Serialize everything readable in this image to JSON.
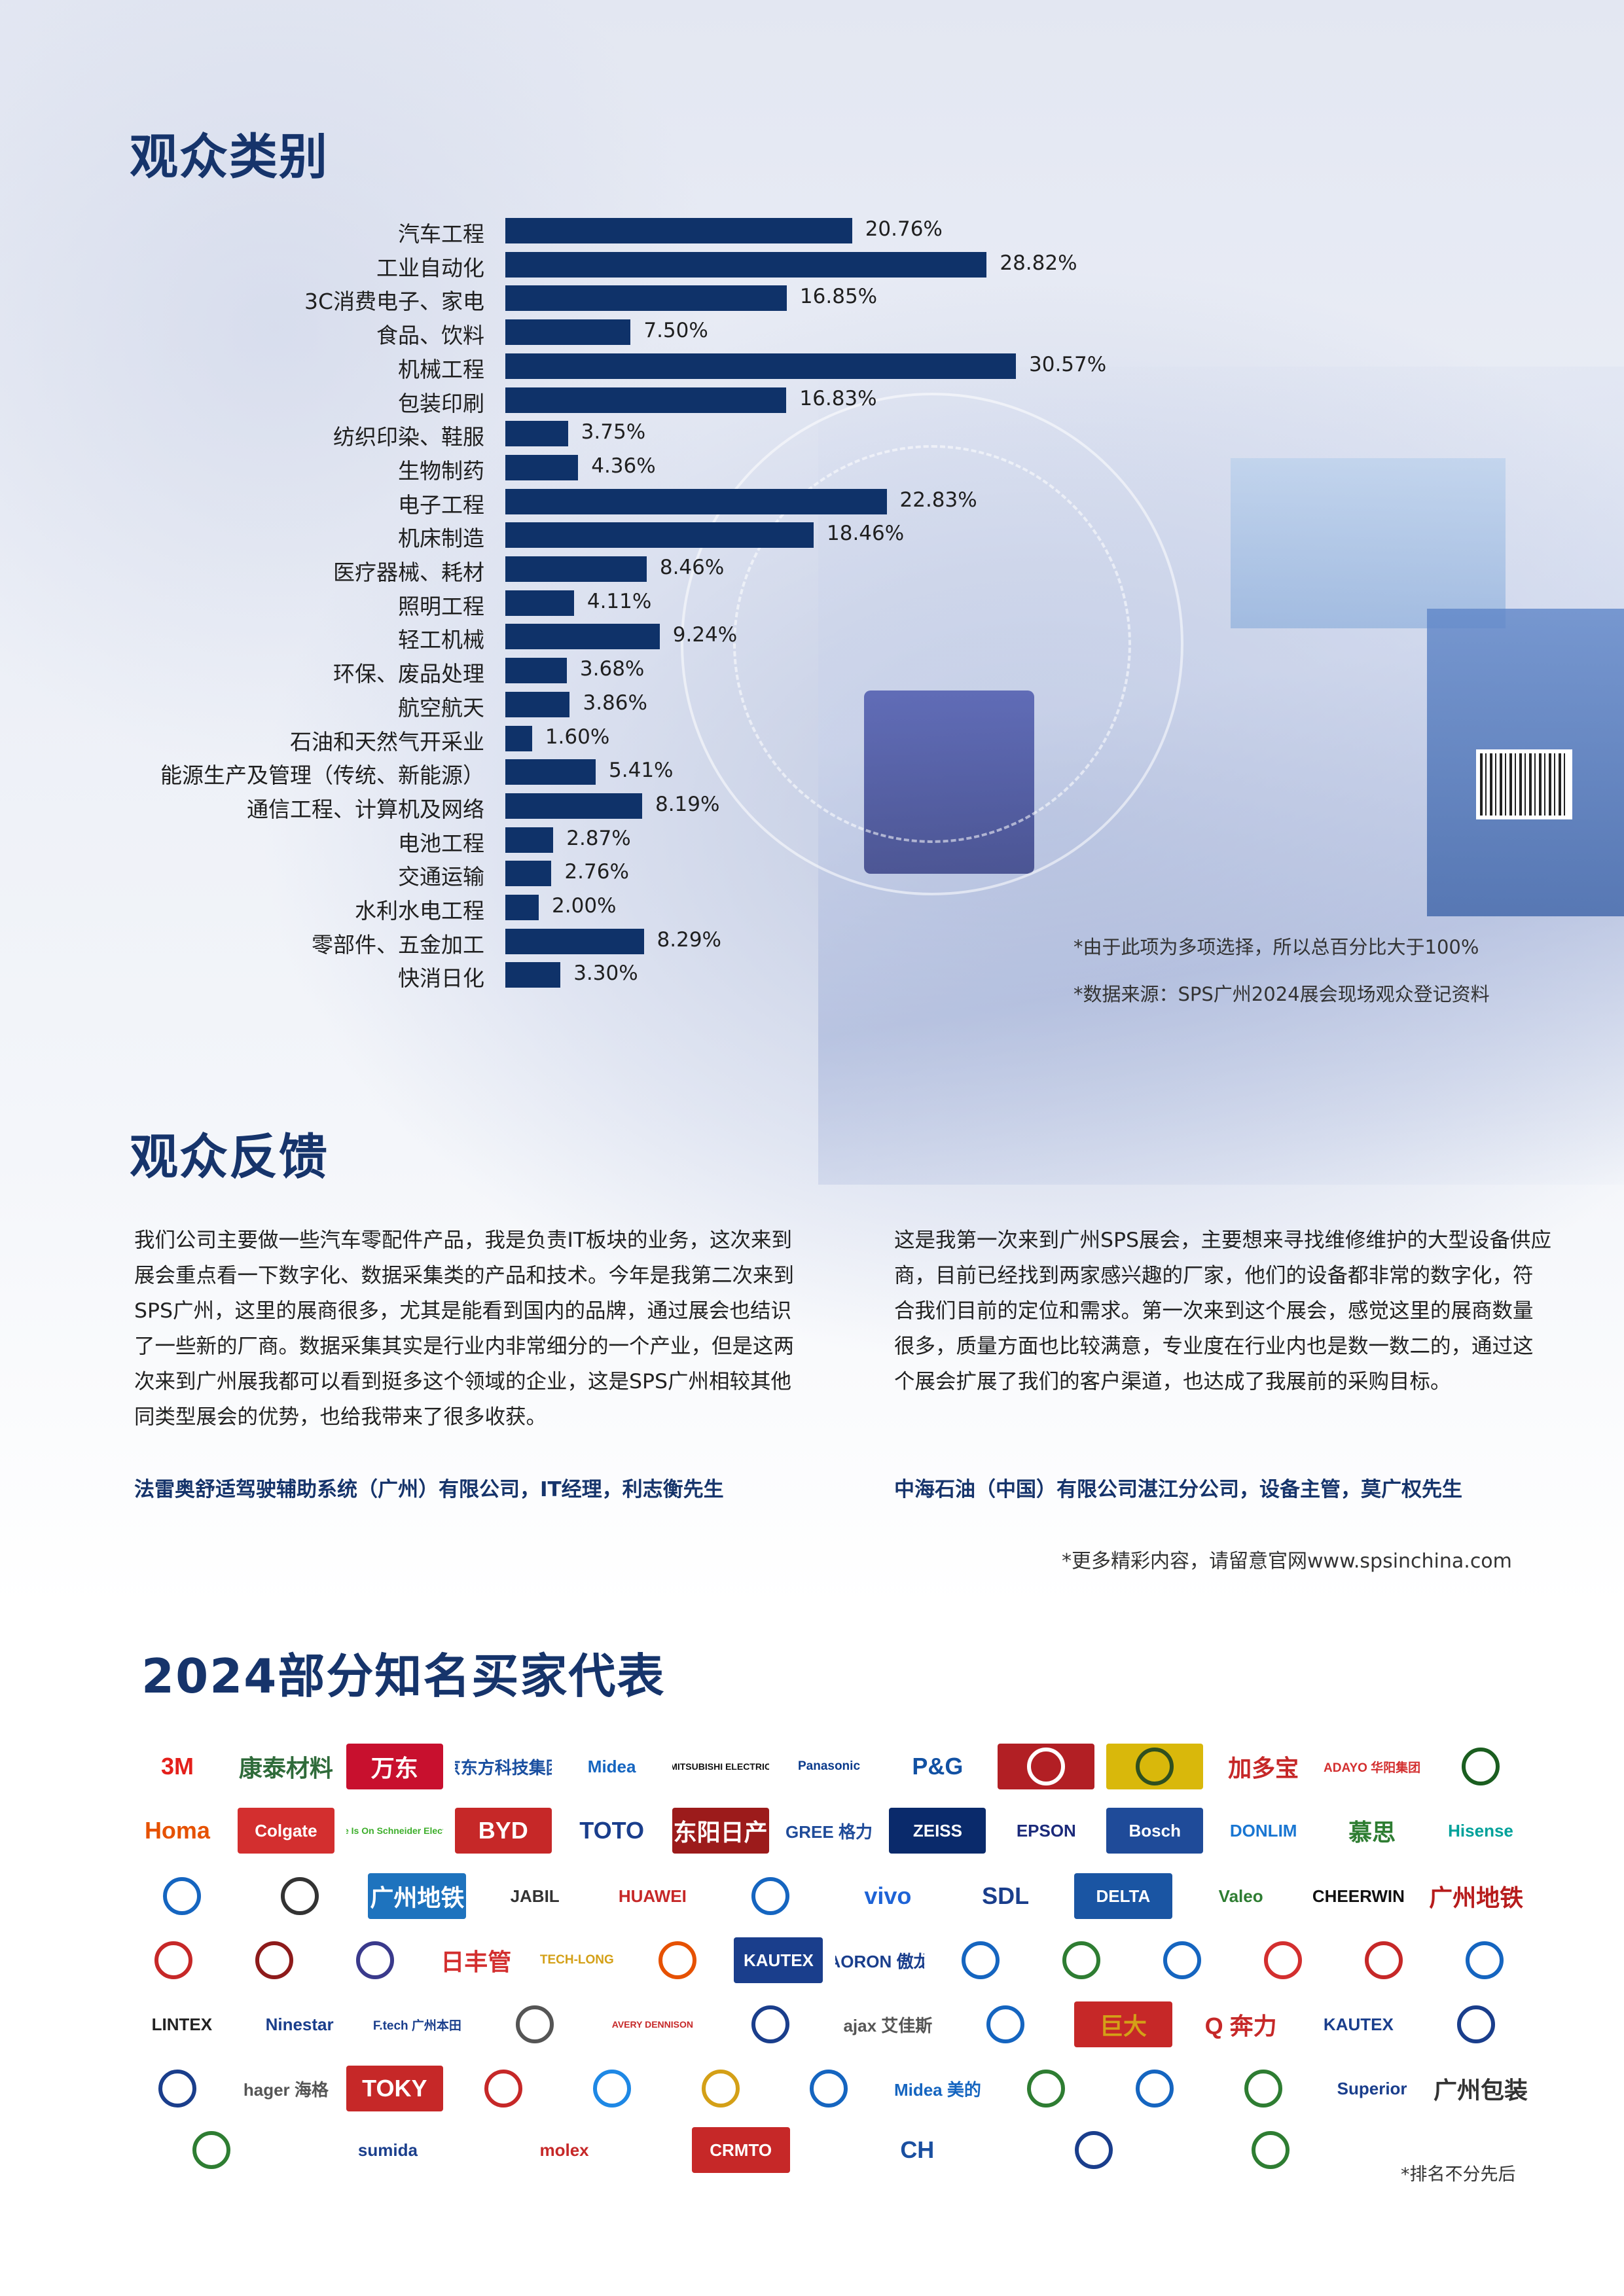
{
  "audience_categories": {
    "title": "观众类别",
    "chart_data": {
      "type": "bar",
      "orientation": "horizontal",
      "title": "观众类别",
      "categories": [
        "汽车工程",
        "工业自动化",
        "3C消费电子、家电",
        "食品、饮料",
        "机械工程",
        "包装印刷",
        "纺织印染、鞋服",
        "生物制药",
        "电子工程",
        "机床制造",
        "医疗器械、耗材",
        "照明工程",
        "轻工机械",
        "环保、废品处理",
        "航空航天",
        "石油和天然气开采业",
        "能源生产及管理（传统、新能源）",
        "通信工程、计算机及网络",
        "电池工程",
        "交通运输",
        "水利水电工程",
        "零部件、五金加工",
        "快消日化"
      ],
      "values": [
        20.76,
        28.82,
        16.85,
        7.5,
        30.57,
        16.83,
        3.75,
        4.36,
        22.83,
        18.46,
        8.46,
        4.11,
        9.24,
        3.68,
        3.86,
        1.6,
        5.41,
        8.19,
        2.87,
        2.76,
        2.0,
        8.29,
        3.3
      ],
      "value_labels": [
        "20.76%",
        "28.82%",
        "16.85%",
        "7.50%",
        "30.57%",
        "16.83%",
        "3.75%",
        "4.36%",
        "22.83%",
        "18.46%",
        "8.46%",
        "4.11%",
        "9.24%",
        "3.68%",
        "3.86%",
        "1.60%",
        "5.41%",
        "8.19%",
        "2.87%",
        "2.76%",
        "2.00%",
        "8.29%",
        "3.30%"
      ],
      "unit": "%",
      "xlim": [
        0,
        30.57
      ],
      "grid": false,
      "bar_color": "#0f3269"
    },
    "notes": [
      "*由于此项为多项选择，所以总百分比大于100%",
      "*数据来源：SPS广州2024展会现场观众登记资料"
    ]
  },
  "feedback": {
    "title": "观众反馈",
    "quotes": [
      {
        "text": "我们公司主要做一些汽车零配件产品，我是负责IT板块的业务，这次来到展会重点看一下数字化、数据采集类的产品和技术。今年是我第二次来到SPS广州，这里的展商很多，尤其是能看到国内的品牌，通过展会也结识了一些新的厂商。数据采集其实是行业内非常细分的一个产业，但是这两次来到广州展我都可以看到挺多这个领域的企业，这是SPS广州相较其他同类型展会的优势，也给我带来了很多收获。",
        "author": "法雷奥舒适驾驶辅助系统（广州）有限公司，IT经理，利志衡先生"
      },
      {
        "text": "这是我第一次来到广州SPS展会，主要想来寻找维修维护的大型设备供应商，目前已经找到两家感兴趣的厂家，他们的设备都非常的数字化，符合我们目前的定位和需求。第一次来到这个展会，感觉这里的展商数量很多，质量方面也比较满意，专业度在行业内也是数一数二的，通过这个展会扩展了我们的客户渠道，也达成了我展前的采购目标。",
        "author": "中海石油（中国）有限公司湛江分公司，设备主管，莫广权先生"
      }
    ],
    "more": "*更多精彩内容，请留意官网www.spsinchina.com"
  },
  "buyers": {
    "title": "2024部分知名买家代表",
    "footnote": "*排名不分先后",
    "logos": [
      {
        "text": "3M",
        "color": "#e4201b",
        "bg": "#ffffff"
      },
      {
        "text": "康泰材料",
        "color": "#2f6b3a",
        "bg": "#ffffff"
      },
      {
        "text": "万东",
        "color": "#ffffff",
        "bg": "#c8102e"
      },
      {
        "text": "京东方科技集团",
        "color": "#1a4fa0",
        "bg": "#ffffff"
      },
      {
        "text": "Midea",
        "color": "#1565c0",
        "bg": ""
      },
      {
        "text": "MITSUBISHI ELECTRIC",
        "color": "#111111",
        "bg": ""
      },
      {
        "text": "Panasonic",
        "color": "#0b3b8c",
        "bg": ""
      },
      {
        "text": "P&G",
        "color": "#1251a3",
        "bg": "#ffffff"
      },
      {
        "text": "",
        "color": "#ffffff",
        "bg": "#b21f24"
      },
      {
        "text": "",
        "color": "#2f4f1f",
        "bg": "#d9b80b"
      },
      {
        "text": "加多宝",
        "color": "#c62828",
        "bg": ""
      },
      {
        "text": "ADAYO 华阳集团",
        "color": "#d32f2f",
        "bg": ""
      },
      {
        "text": "",
        "color": "#1b5e20",
        "bg": ""
      },
      {
        "text": "Homa",
        "color": "#e65100",
        "bg": ""
      },
      {
        "text": "Colgate",
        "color": "#ffffff",
        "bg": "#d32f2f"
      },
      {
        "text": "Life Is On Schneider Electric",
        "color": "#3dae2b",
        "bg": "#ffffff"
      },
      {
        "text": "BYD",
        "color": "#ffffff",
        "bg": "#c62828"
      },
      {
        "text": "TOTO",
        "color": "#1a3e8c",
        "bg": ""
      },
      {
        "text": "东阳日产",
        "color": "#ffffff",
        "bg": "#9c1b1b"
      },
      {
        "text": "GREE 格力",
        "color": "#1f4b99",
        "bg": ""
      },
      {
        "text": "ZEISS",
        "color": "#ffffff",
        "bg": "#0a2a6b"
      },
      {
        "text": "EPSON",
        "color": "#1b2a7a",
        "bg": ""
      },
      {
        "text": "Bosch",
        "color": "#ffffff",
        "bg": "#1f4b99"
      },
      {
        "text": "DONLIM",
        "color": "#1976d2",
        "bg": ""
      },
      {
        "text": "慕思",
        "color": "#2e7d32",
        "bg": ""
      },
      {
        "text": "Hisense",
        "color": "#00a19a",
        "bg": ""
      },
      {
        "text": "",
        "color": "#1565c0",
        "bg": ""
      },
      {
        "text": "",
        "color": "#333333",
        "bg": ""
      },
      {
        "text": "广州地铁",
        "color": "#ffffff",
        "bg": "#1e73be"
      },
      {
        "text": "JABIL",
        "color": "#333333",
        "bg": ""
      },
      {
        "text": "HUAWEI",
        "color": "#c62828",
        "bg": ""
      },
      {
        "text": "",
        "color": "#1565c0",
        "bg": ""
      },
      {
        "text": "vivo",
        "color": "#1e63d6",
        "bg": ""
      },
      {
        "text": "SDL",
        "color": "#1a3e8c",
        "bg": ""
      },
      {
        "text": "DELTA",
        "color": "#ffffff",
        "bg": "#1a55a3"
      },
      {
        "text": "Valeo",
        "color": "#2e7d32",
        "bg": ""
      },
      {
        "text": "CHEERWIN",
        "color": "#111111",
        "bg": ""
      },
      {
        "text": "广州地铁",
        "color": "#b71c1c",
        "bg": ""
      },
      {
        "text": "",
        "color": "#c62828",
        "bg": ""
      },
      {
        "text": "",
        "color": "#8e1b1b",
        "bg": ""
      },
      {
        "text": "",
        "color": "#3a3a8c",
        "bg": ""
      },
      {
        "text": "日丰管",
        "color": "#d32f2f",
        "bg": ""
      },
      {
        "text": "TECH-LONG",
        "color": "#d4a017",
        "bg": ""
      },
      {
        "text": "",
        "color": "#e65100",
        "bg": ""
      },
      {
        "text": "KAUTEX",
        "color": "#ffffff",
        "bg": "#1a3e8c"
      },
      {
        "text": "AORON 傲龙",
        "color": "#1a3e8c",
        "bg": ""
      },
      {
        "text": "",
        "color": "#1565c0",
        "bg": ""
      },
      {
        "text": "",
        "color": "#2e7d32",
        "bg": ""
      },
      {
        "text": "",
        "color": "#1565c0",
        "bg": ""
      },
      {
        "text": "",
        "color": "#d32f2f",
        "bg": ""
      },
      {
        "text": "",
        "color": "#c62828",
        "bg": ""
      },
      {
        "text": "",
        "color": "#1565c0",
        "bg": ""
      },
      {
        "text": "LINTEX",
        "color": "#222222",
        "bg": ""
      },
      {
        "text": "Ninestar",
        "color": "#1a3e8c",
        "bg": ""
      },
      {
        "text": "F.tech 广州本田",
        "color": "#1a3e8c",
        "bg": ""
      },
      {
        "text": "",
        "color": "#555555",
        "bg": ""
      },
      {
        "text": "AVERY DENNISON",
        "color": "#c62828",
        "bg": ""
      },
      {
        "text": "",
        "color": "#1a3e8c",
        "bg": ""
      },
      {
        "text": "ajax 艾佳斯",
        "color": "#555555",
        "bg": ""
      },
      {
        "text": "",
        "color": "#1565c0",
        "bg": ""
      },
      {
        "text": "巨大",
        "color": "#d4a017",
        "bg": "#c62828"
      },
      {
        "text": "Q 奔力",
        "color": "#c62828",
        "bg": ""
      },
      {
        "text": "KAUTEX",
        "color": "#1a3e8c",
        "bg": ""
      },
      {
        "text": "",
        "color": "#1a3e8c",
        "bg": ""
      },
      {
        "text": "",
        "color": "#1a3e8c",
        "bg": ""
      },
      {
        "text": "hager 海格",
        "color": "#555555",
        "bg": ""
      },
      {
        "text": "TOKY",
        "color": "#ffffff",
        "bg": "#c62828"
      },
      {
        "text": "",
        "color": "#c62828",
        "bg": ""
      },
      {
        "text": "",
        "color": "#1e88e5",
        "bg": ""
      },
      {
        "text": "",
        "color": "#d4a017",
        "bg": ""
      },
      {
        "text": "",
        "color": "#1565c0",
        "bg": ""
      },
      {
        "text": "Midea 美的",
        "color": "#1565c0",
        "bg": ""
      },
      {
        "text": "",
        "color": "#2e7d32",
        "bg": ""
      },
      {
        "text": "",
        "color": "#1565c0",
        "bg": ""
      },
      {
        "text": "",
        "color": "#2e7d32",
        "bg": ""
      },
      {
        "text": "Superior",
        "color": "#1a3e8c",
        "bg": ""
      },
      {
        "text": "广州包装",
        "color": "#333333",
        "bg": ""
      },
      {
        "text": "",
        "color": "#2e7d32",
        "bg": ""
      },
      {
        "text": "sumida",
        "color": "#1a3e8c",
        "bg": ""
      },
      {
        "text": "molex",
        "color": "#c62828",
        "bg": ""
      },
      {
        "text": "CRMTO",
        "color": "#ffffff",
        "bg": "#c62828"
      },
      {
        "text": "CH",
        "color": "#1a4fa0",
        "bg": ""
      },
      {
        "text": "",
        "color": "#1a3e8c",
        "bg": ""
      },
      {
        "text": "",
        "color": "#2e7d32",
        "bg": ""
      }
    ]
  }
}
